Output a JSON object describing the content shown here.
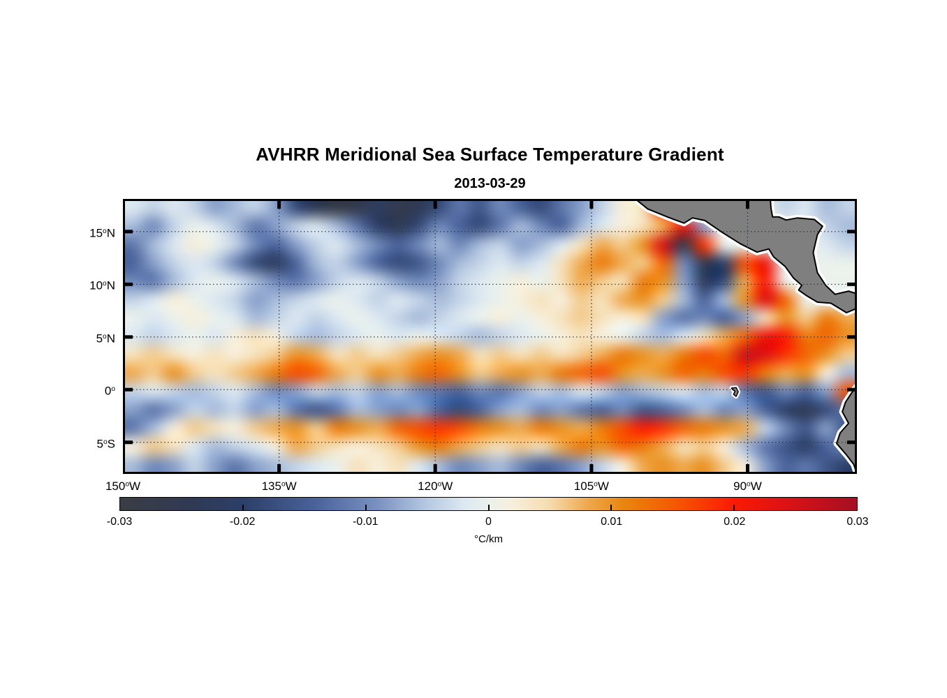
{
  "title": "AVHRR Meridional Sea Surface Temperature Gradient",
  "subtitle": "2013-03-29",
  "figure_background": "#ffffff",
  "axes": {
    "lon_min": -150.0,
    "lon_max": -79.5,
    "lat_min": -8.0,
    "lat_max": 18.1,
    "x_ticks": [
      {
        "lon": -150,
        "label": "150°W"
      },
      {
        "lon": -135,
        "label": "135°W"
      },
      {
        "lon": -120,
        "label": "120°W"
      },
      {
        "lon": -105,
        "label": "105°W"
      },
      {
        "lon": -90,
        "label": "90°W"
      }
    ],
    "y_ticks": [
      {
        "lat": 15,
        "label": "15°N"
      },
      {
        "lat": 10,
        "label": "10°N"
      },
      {
        "lat": 5,
        "label": "5°N"
      },
      {
        "lat": 0,
        "label": "0°"
      },
      {
        "lat": -5,
        "label": "5°S"
      }
    ],
    "grid_on": true,
    "grid_style": "dotted",
    "border_color": "#000000"
  },
  "colorbar": {
    "label": "°C/km",
    "min": -0.03,
    "max": 0.03,
    "tick_labels": [
      "-0.03",
      "-0.02",
      "-0.01",
      "0",
      "0.01",
      "0.02",
      "0.03"
    ],
    "tick_values": [
      -0.03,
      -0.02,
      -0.01,
      0,
      0.01,
      0.02,
      0.03
    ]
  },
  "chart_data": {
    "type": "heatmap",
    "title": "AVHRR Meridional Sea Surface Temperature Gradient",
    "subtitle": "2013-03-29",
    "values_unit": "°C/km",
    "value_scale": 0.001,
    "value_range": [
      -0.03,
      0.03
    ],
    "x_lon": [
      -150,
      -148,
      -146,
      -144,
      -142,
      -140,
      -138,
      -136,
      -134,
      -132,
      -130,
      -128,
      -126,
      -124,
      -122,
      -120,
      -118,
      -116,
      -114,
      -112,
      -110,
      -108,
      -106,
      -104,
      -102,
      -100,
      -98,
      -96,
      -94,
      -92,
      -90,
      -88,
      -86,
      -84,
      -82,
      -80
    ],
    "y_lat": [
      18.1,
      16.2,
      14.4,
      12.6,
      10.8,
      9.0,
      7.2,
      5.4,
      3.6,
      1.8,
      0.0,
      -1.8,
      -3.6,
      -5.4,
      -7.2
    ],
    "grid": [
      [
        -2,
        -4,
        -2,
        -4,
        -8,
        -6,
        -4,
        -8,
        -18,
        -24,
        -28,
        -26,
        -22,
        -26,
        -24,
        -18,
        -12,
        -16,
        -10,
        -14,
        -18,
        -12,
        -8,
        -4,
        2,
        4,
        18,
        2,
        0,
        0,
        0,
        0,
        -4,
        -2,
        -6,
        -4
      ],
      [
        -6,
        -10,
        -4,
        0,
        -2,
        -6,
        -12,
        -8,
        -4,
        -2,
        -6,
        -12,
        -20,
        -24,
        -18,
        -10,
        -14,
        -18,
        -12,
        -6,
        -10,
        -14,
        -6,
        -2,
        2,
        4,
        8,
        22,
        -8,
        0,
        0,
        0,
        0,
        -2,
        -4,
        -6
      ],
      [
        -12,
        -6,
        -2,
        2,
        0,
        -4,
        -10,
        -14,
        -8,
        -4,
        -2,
        -6,
        -10,
        -14,
        -10,
        -6,
        -10,
        -6,
        -4,
        -8,
        -6,
        -2,
        4,
        8,
        6,
        10,
        25,
        -26,
        18,
        0,
        0,
        0,
        0,
        0,
        -2,
        -4
      ],
      [
        -14,
        -8,
        -4,
        -2,
        -4,
        -10,
        -18,
        -22,
        -14,
        -6,
        -4,
        -8,
        -14,
        -18,
        -16,
        -10,
        -6,
        -4,
        -2,
        -4,
        -2,
        4,
        8,
        12,
        8,
        6,
        14,
        -10,
        -26,
        -20,
        16,
        22,
        0,
        0,
        0,
        0
      ],
      [
        -10,
        -12,
        -6,
        -2,
        0,
        -2,
        -6,
        -10,
        -12,
        -8,
        -4,
        -2,
        -4,
        -8,
        -10,
        -8,
        -4,
        -2,
        0,
        2,
        0,
        4,
        8,
        6,
        4,
        12,
        10,
        -8,
        -22,
        -18,
        8,
        20,
        0,
        0,
        0,
        0
      ],
      [
        -4,
        -2,
        2,
        0,
        -2,
        -4,
        -8,
        -6,
        -4,
        -2,
        0,
        -2,
        -4,
        -2,
        -4,
        -6,
        -4,
        -2,
        0,
        2,
        4,
        2,
        6,
        4,
        8,
        10,
        6,
        -6,
        -14,
        -6,
        10,
        24,
        14,
        0,
        0,
        0
      ],
      [
        0,
        -2,
        0,
        2,
        0,
        -2,
        -6,
        -4,
        -2,
        -4,
        -2,
        0,
        -2,
        -4,
        -6,
        -4,
        -2,
        0,
        2,
        0,
        2,
        4,
        6,
        4,
        2,
        4,
        -8,
        -12,
        -10,
        -14,
        -8,
        4,
        10,
        6,
        12,
        8
      ],
      [
        -2,
        -4,
        -2,
        0,
        -2,
        2,
        4,
        2,
        -4,
        -6,
        -4,
        -2,
        0,
        -2,
        0,
        -2,
        -4,
        -6,
        -4,
        -2,
        0,
        2,
        4,
        2,
        0,
        -4,
        -6,
        -2,
        4,
        8,
        14,
        22,
        20,
        12,
        14,
        10
      ],
      [
        4,
        6,
        4,
        2,
        4,
        2,
        4,
        6,
        10,
        8,
        4,
        6,
        4,
        6,
        8,
        10,
        8,
        4,
        6,
        4,
        6,
        4,
        6,
        8,
        12,
        10,
        8,
        12,
        16,
        14,
        26,
        24,
        18,
        14,
        10,
        6
      ],
      [
        8,
        6,
        10,
        6,
        4,
        6,
        8,
        12,
        16,
        14,
        8,
        6,
        10,
        8,
        12,
        14,
        10,
        6,
        8,
        10,
        8,
        12,
        14,
        16,
        10,
        8,
        10,
        14,
        12,
        16,
        18,
        12,
        8,
        10,
        2,
        -6
      ],
      [
        -4,
        -2,
        -4,
        -6,
        -4,
        -2,
        -6,
        -10,
        -8,
        -4,
        -6,
        -4,
        -8,
        -6,
        -10,
        -12,
        -14,
        -10,
        -12,
        -8,
        -4,
        -6,
        -2,
        -4,
        -8,
        -6,
        -4,
        -2,
        -6,
        -4,
        -12,
        -16,
        -10,
        -14,
        -8,
        16
      ],
      [
        -8,
        -12,
        -8,
        -4,
        -6,
        -4,
        -8,
        -6,
        -12,
        -16,
        -12,
        -6,
        -8,
        -10,
        -8,
        -14,
        -18,
        -14,
        -8,
        -6,
        -10,
        -8,
        -12,
        -14,
        -10,
        -16,
        -14,
        -10,
        -6,
        -10,
        -8,
        -14,
        -20,
        -24,
        -18,
        -12
      ],
      [
        -12,
        -6,
        2,
        6,
        4,
        2,
        6,
        8,
        10,
        6,
        12,
        10,
        8,
        14,
        16,
        18,
        16,
        12,
        10,
        8,
        12,
        10,
        8,
        12,
        16,
        20,
        18,
        14,
        12,
        10,
        8,
        -4,
        -10,
        -16,
        -8,
        -18
      ],
      [
        2,
        6,
        4,
        -2,
        -6,
        -4,
        -2,
        2,
        8,
        6,
        4,
        2,
        4,
        6,
        10,
        12,
        8,
        6,
        4,
        6,
        4,
        8,
        12,
        10,
        14,
        12,
        8,
        4,
        6,
        2,
        -6,
        -12,
        -16,
        -20,
        -14,
        -10
      ],
      [
        -6,
        -10,
        -8,
        -4,
        -8,
        -12,
        -8,
        -6,
        -4,
        -2,
        0,
        4,
        2,
        4,
        -2,
        -6,
        -10,
        -8,
        -6,
        -10,
        -14,
        -12,
        -8,
        -4,
        2,
        8,
        10,
        8,
        10,
        6,
        2,
        -8,
        -14,
        -12,
        -16,
        -20
      ]
    ],
    "colormap_stops": [
      {
        "v": -30,
        "c": "#3a3d43"
      },
      {
        "v": -24,
        "c": "#2f3a55"
      },
      {
        "v": -20,
        "c": "#2c3f68"
      },
      {
        "v": -14,
        "c": "#4a639b"
      },
      {
        "v": -9,
        "c": "#7a92c2"
      },
      {
        "v": -5,
        "c": "#b6c9e2"
      },
      {
        "v": -2,
        "c": "#dce8f1"
      },
      {
        "v": 0,
        "c": "#ebf1ec"
      },
      {
        "v": 2,
        "c": "#f7efdc"
      },
      {
        "v": 5,
        "c": "#f5dcae"
      },
      {
        "v": 8,
        "c": "#efa94f"
      },
      {
        "v": 11,
        "c": "#e8860f"
      },
      {
        "v": 15,
        "c": "#f55a02"
      },
      {
        "v": 20,
        "c": "#fb1a04"
      },
      {
        "v": 24,
        "c": "#de1214"
      },
      {
        "v": 30,
        "c": "#a50f24"
      }
    ],
    "land": {
      "fill": "#7f7f7f",
      "outline": "#000000",
      "outline_width": 2,
      "halo": "#ffffff",
      "halo_width": 9,
      "polygons": {
        "central_america": [
          [
            -101.4,
            18.6
          ],
          [
            -99.6,
            17.15
          ],
          [
            -97.6,
            16.35
          ],
          [
            -96.1,
            15.8
          ],
          [
            -95.3,
            16.3
          ],
          [
            -94.1,
            16.05
          ],
          [
            -92.4,
            14.9
          ],
          [
            -90.7,
            13.85
          ],
          [
            -89.1,
            13.05
          ],
          [
            -87.95,
            13.35
          ],
          [
            -87.5,
            12.6
          ],
          [
            -86.4,
            11.7
          ],
          [
            -85.6,
            10.6
          ],
          [
            -84.8,
            9.9
          ],
          [
            -85.1,
            9.45
          ],
          [
            -84.3,
            8.9
          ],
          [
            -83.3,
            8.3
          ],
          [
            -82.0,
            8.2
          ],
          [
            -80.5,
            7.3
          ],
          [
            -79.2,
            7.85
          ],
          [
            -79.2,
            9.0
          ],
          [
            -80.3,
            9.35
          ],
          [
            -81.6,
            9.05
          ],
          [
            -82.5,
            9.9
          ],
          [
            -83.3,
            11.1
          ],
          [
            -83.7,
            13.0
          ],
          [
            -83.3,
            14.7
          ],
          [
            -82.8,
            15.5
          ],
          [
            -83.6,
            16.15
          ],
          [
            -85.2,
            16.3
          ],
          [
            -86.3,
            16.1
          ],
          [
            -87.0,
            16.4
          ],
          [
            -87.6,
            16.4
          ],
          [
            -87.75,
            17.2
          ],
          [
            -87.85,
            18.6
          ]
        ],
        "south_america": [
          [
            -79.3,
            0.6
          ],
          [
            -80.0,
            -0.3
          ],
          [
            -80.6,
            -1.2
          ],
          [
            -80.9,
            -2.1
          ],
          [
            -80.3,
            -3.2
          ],
          [
            -81.1,
            -4.1
          ],
          [
            -81.45,
            -5.1
          ],
          [
            -80.5,
            -6.2
          ],
          [
            -79.8,
            -7.1
          ],
          [
            -79.4,
            -8.3
          ],
          [
            -78.8,
            -8.3
          ],
          [
            -78.8,
            0.6
          ]
        ],
        "galapagos": [
          [
            -91.55,
            0.15
          ],
          [
            -91.1,
            0.2
          ],
          [
            -90.9,
            -0.2
          ],
          [
            -91.1,
            -0.65
          ],
          [
            -91.35,
            -0.45
          ],
          [
            -91.2,
            -0.15
          ],
          [
            -91.42,
            -0.02
          ]
        ]
      }
    }
  }
}
